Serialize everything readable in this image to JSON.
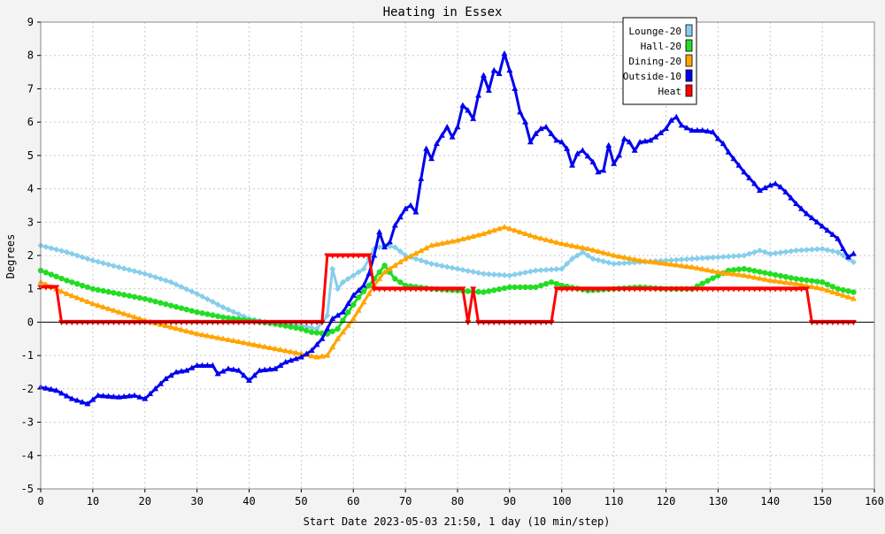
{
  "chart_data": {
    "type": "line",
    "title": "Heating in Essex",
    "xlabel": "Start Date 2023-05-03 21:50, 1 day (10 min/step)",
    "ylabel": "Degrees",
    "xlim": [
      0,
      160
    ],
    "ylim": [
      -5,
      9
    ],
    "xticks": [
      0,
      10,
      20,
      30,
      40,
      50,
      60,
      70,
      80,
      90,
      100,
      110,
      120,
      130,
      140,
      150,
      160
    ],
    "yticks": [
      -5,
      -4,
      -3,
      -2,
      -1,
      0,
      1,
      2,
      3,
      4,
      5,
      6,
      7,
      8,
      9
    ],
    "grid": true,
    "legend_position": "top-right",
    "series": [
      {
        "name": "Lounge-20",
        "color": "#87ceeb",
        "marker": "diamond",
        "points": [
          [
            0,
            2.3
          ],
          [
            5,
            2.1
          ],
          [
            10,
            1.85
          ],
          [
            15,
            1.65
          ],
          [
            20,
            1.45
          ],
          [
            25,
            1.2
          ],
          [
            30,
            0.85
          ],
          [
            35,
            0.45
          ],
          [
            40,
            0.1
          ],
          [
            45,
            -0.05
          ],
          [
            50,
            -0.1
          ],
          [
            53,
            -0.2
          ],
          [
            55,
            0.2
          ],
          [
            56,
            1.6
          ],
          [
            57,
            1.0
          ],
          [
            58,
            1.2
          ],
          [
            60,
            1.4
          ],
          [
            62,
            1.6
          ],
          [
            64,
            2.2
          ],
          [
            66,
            2.3
          ],
          [
            68,
            2.25
          ],
          [
            70,
            2.0
          ],
          [
            75,
            1.75
          ],
          [
            80,
            1.6
          ],
          [
            85,
            1.45
          ],
          [
            90,
            1.4
          ],
          [
            95,
            1.55
          ],
          [
            100,
            1.6
          ],
          [
            102,
            1.9
          ],
          [
            104,
            2.1
          ],
          [
            106,
            1.9
          ],
          [
            110,
            1.75
          ],
          [
            115,
            1.8
          ],
          [
            120,
            1.85
          ],
          [
            125,
            1.9
          ],
          [
            130,
            1.95
          ],
          [
            135,
            2.0
          ],
          [
            138,
            2.15
          ],
          [
            140,
            2.05
          ],
          [
            145,
            2.15
          ],
          [
            150,
            2.2
          ],
          [
            153,
            2.1
          ],
          [
            156,
            1.8
          ]
        ]
      },
      {
        "name": "Hall-20",
        "color": "#22dd22",
        "marker": "circle",
        "points": [
          [
            0,
            1.55
          ],
          [
            5,
            1.25
          ],
          [
            10,
            1.0
          ],
          [
            15,
            0.85
          ],
          [
            20,
            0.7
          ],
          [
            25,
            0.5
          ],
          [
            30,
            0.3
          ],
          [
            35,
            0.15
          ],
          [
            40,
            0.05
          ],
          [
            45,
            -0.05
          ],
          [
            50,
            -0.2
          ],
          [
            52,
            -0.3
          ],
          [
            55,
            -0.35
          ],
          [
            57,
            -0.2
          ],
          [
            59,
            0.3
          ],
          [
            61,
            0.75
          ],
          [
            63,
            1.1
          ],
          [
            65,
            1.5
          ],
          [
            66,
            1.7
          ],
          [
            68,
            1.3
          ],
          [
            70,
            1.1
          ],
          [
            75,
            1.0
          ],
          [
            80,
            0.95
          ],
          [
            85,
            0.9
          ],
          [
            90,
            1.05
          ],
          [
            95,
            1.05
          ],
          [
            98,
            1.2
          ],
          [
            100,
            1.1
          ],
          [
            105,
            0.95
          ],
          [
            110,
            1.0
          ],
          [
            115,
            1.05
          ],
          [
            120,
            1.0
          ],
          [
            125,
            1.0
          ],
          [
            130,
            1.4
          ],
          [
            132,
            1.55
          ],
          [
            135,
            1.6
          ],
          [
            140,
            1.45
          ],
          [
            145,
            1.3
          ],
          [
            150,
            1.2
          ],
          [
            153,
            1.0
          ],
          [
            156,
            0.9
          ]
        ]
      },
      {
        "name": "Dining-20",
        "color": "#ffa500",
        "marker": "triangle",
        "points": [
          [
            0,
            1.2
          ],
          [
            5,
            0.85
          ],
          [
            10,
            0.55
          ],
          [
            15,
            0.3
          ],
          [
            20,
            0.05
          ],
          [
            25,
            -0.15
          ],
          [
            30,
            -0.35
          ],
          [
            35,
            -0.5
          ],
          [
            40,
            -0.65
          ],
          [
            45,
            -0.8
          ],
          [
            50,
            -0.95
          ],
          [
            53,
            -1.05
          ],
          [
            55,
            -1.0
          ],
          [
            57,
            -0.5
          ],
          [
            60,
            0.1
          ],
          [
            62,
            0.6
          ],
          [
            64,
            1.1
          ],
          [
            66,
            1.5
          ],
          [
            70,
            1.9
          ],
          [
            75,
            2.3
          ],
          [
            80,
            2.45
          ],
          [
            85,
            2.65
          ],
          [
            89,
            2.85
          ],
          [
            90,
            2.8
          ],
          [
            95,
            2.55
          ],
          [
            100,
            2.35
          ],
          [
            105,
            2.2
          ],
          [
            110,
            2.0
          ],
          [
            115,
            1.85
          ],
          [
            120,
            1.75
          ],
          [
            125,
            1.65
          ],
          [
            130,
            1.5
          ],
          [
            135,
            1.4
          ],
          [
            140,
            1.25
          ],
          [
            145,
            1.15
          ],
          [
            150,
            1.0
          ],
          [
            156,
            0.7
          ]
        ]
      },
      {
        "name": "Outside-10",
        "color": "#0000ee",
        "marker": "triangle",
        "points": [
          [
            0,
            -1.95
          ],
          [
            3,
            -2.05
          ],
          [
            6,
            -2.3
          ],
          [
            9,
            -2.45
          ],
          [
            11,
            -2.2
          ],
          [
            15,
            -2.25
          ],
          [
            18,
            -2.2
          ],
          [
            20,
            -2.3
          ],
          [
            22,
            -2.0
          ],
          [
            24,
            -1.7
          ],
          [
            26,
            -1.5
          ],
          [
            28,
            -1.45
          ],
          [
            30,
            -1.3
          ],
          [
            33,
            -1.3
          ],
          [
            34,
            -1.55
          ],
          [
            36,
            -1.4
          ],
          [
            38,
            -1.45
          ],
          [
            40,
            -1.75
          ],
          [
            42,
            -1.45
          ],
          [
            45,
            -1.4
          ],
          [
            47,
            -1.2
          ],
          [
            50,
            -1.05
          ],
          [
            52,
            -0.85
          ],
          [
            54,
            -0.5
          ],
          [
            56,
            0.1
          ],
          [
            58,
            0.3
          ],
          [
            60,
            0.8
          ],
          [
            62,
            1.1
          ],
          [
            63,
            1.45
          ],
          [
            64,
            2.0
          ],
          [
            65,
            2.7
          ],
          [
            66,
            2.25
          ],
          [
            67,
            2.4
          ],
          [
            68,
            2.9
          ],
          [
            70,
            3.4
          ],
          [
            71,
            3.5
          ],
          [
            72,
            3.3
          ],
          [
            73,
            4.3
          ],
          [
            74,
            5.2
          ],
          [
            75,
            4.9
          ],
          [
            76,
            5.35
          ],
          [
            78,
            5.85
          ],
          [
            79,
            5.55
          ],
          [
            80,
            5.85
          ],
          [
            81,
            6.5
          ],
          [
            82,
            6.35
          ],
          [
            83,
            6.1
          ],
          [
            84,
            6.8
          ],
          [
            85,
            7.4
          ],
          [
            86,
            6.95
          ],
          [
            87,
            7.55
          ],
          [
            88,
            7.45
          ],
          [
            89,
            8.05
          ],
          [
            90,
            7.55
          ],
          [
            91,
            7.0
          ],
          [
            92,
            6.3
          ],
          [
            93,
            6.0
          ],
          [
            94,
            5.4
          ],
          [
            95,
            5.65
          ],
          [
            96,
            5.8
          ],
          [
            97,
            5.85
          ],
          [
            98,
            5.65
          ],
          [
            99,
            5.45
          ],
          [
            100,
            5.4
          ],
          [
            101,
            5.2
          ],
          [
            102,
            4.7
          ],
          [
            103,
            5.05
          ],
          [
            104,
            5.15
          ],
          [
            106,
            4.8
          ],
          [
            107,
            4.5
          ],
          [
            108,
            4.55
          ],
          [
            109,
            5.3
          ],
          [
            110,
            4.75
          ],
          [
            111,
            5.0
          ],
          [
            112,
            5.5
          ],
          [
            113,
            5.4
          ],
          [
            114,
            5.15
          ],
          [
            115,
            5.4
          ],
          [
            117,
            5.45
          ],
          [
            118,
            5.55
          ],
          [
            120,
            5.8
          ],
          [
            121,
            6.05
          ],
          [
            122,
            6.15
          ],
          [
            123,
            5.9
          ],
          [
            125,
            5.75
          ],
          [
            127,
            5.75
          ],
          [
            129,
            5.7
          ],
          [
            130,
            5.5
          ],
          [
            131,
            5.35
          ],
          [
            132,
            5.1
          ],
          [
            133,
            4.9
          ],
          [
            135,
            4.5
          ],
          [
            137,
            4.15
          ],
          [
            138,
            3.95
          ],
          [
            140,
            4.1
          ],
          [
            141,
            4.15
          ],
          [
            142,
            4.05
          ],
          [
            143,
            3.9
          ],
          [
            145,
            3.55
          ],
          [
            147,
            3.25
          ],
          [
            149,
            3.0
          ],
          [
            151,
            2.75
          ],
          [
            153,
            2.5
          ],
          [
            154,
            2.2
          ],
          [
            155,
            1.95
          ],
          [
            156,
            2.05
          ]
        ]
      },
      {
        "name": "Heat",
        "color": "#ff0000",
        "marker": "triangle-down",
        "points": [
          [
            0,
            1.05
          ],
          [
            3,
            1.05
          ],
          [
            4,
            0
          ],
          [
            54,
            0
          ],
          [
            55,
            2.0
          ],
          [
            63,
            2.0
          ],
          [
            64,
            1.0
          ],
          [
            81,
            1.0
          ],
          [
            82,
            0
          ],
          [
            83,
            1.0
          ],
          [
            84,
            0
          ],
          [
            98,
            0
          ],
          [
            99,
            1.0
          ],
          [
            147,
            1.0
          ],
          [
            148,
            0
          ],
          [
            156,
            0
          ]
        ]
      }
    ]
  }
}
